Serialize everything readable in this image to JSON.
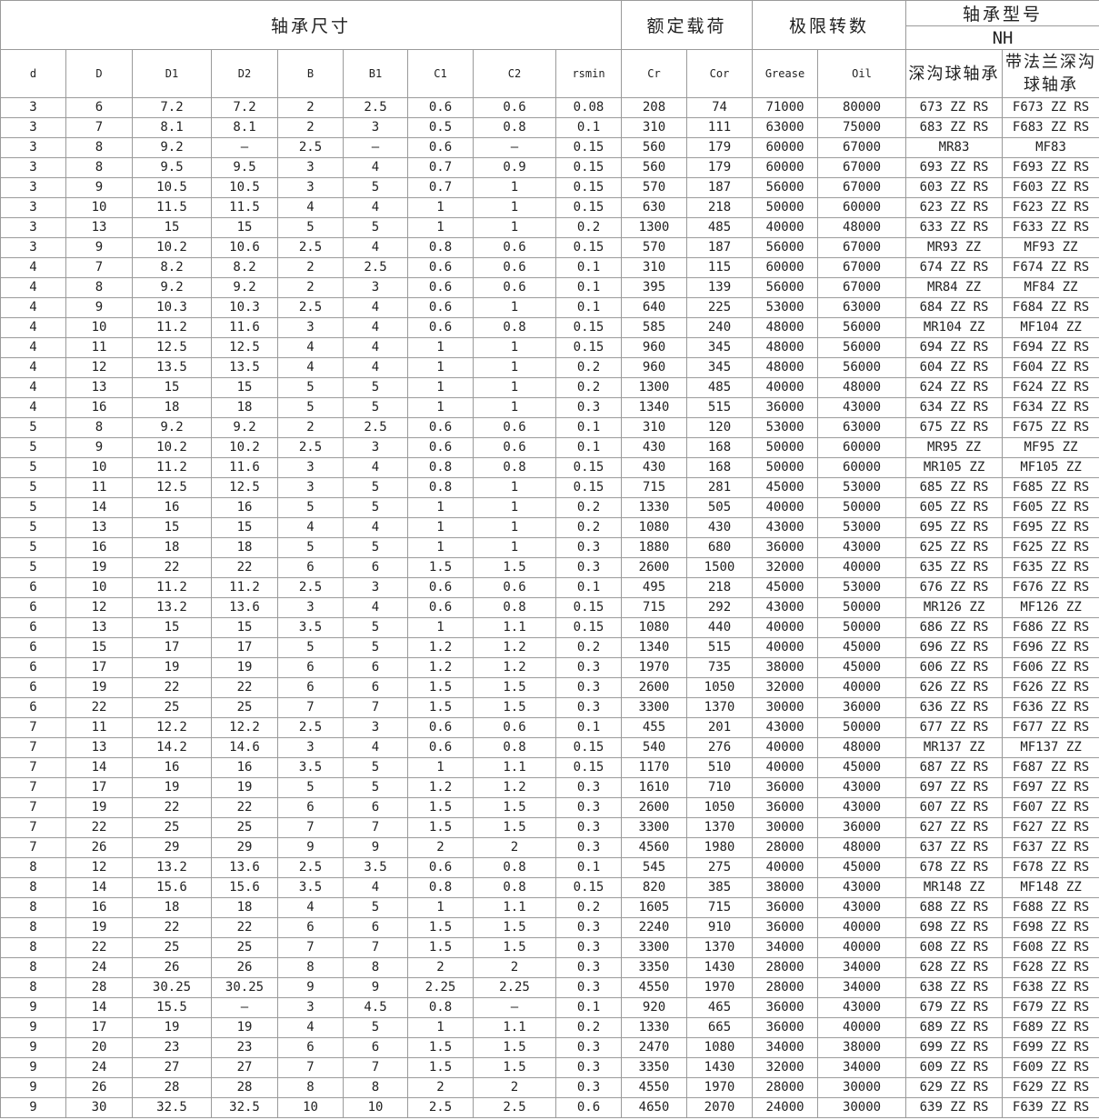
{
  "header": {
    "dimensions": "轴承尺寸",
    "load": "额定载荷",
    "speed": "极限转数",
    "model": "轴承型号",
    "brand": "NH",
    "columns": [
      "d",
      "D",
      "D1",
      "D2",
      "B",
      "B1",
      "C1",
      "C2",
      "rsmin",
      "Cr",
      "Cor",
      "Grease",
      "Oil",
      "深沟球轴承",
      "带法兰深沟球轴承"
    ]
  },
  "table": {
    "rows": [
      [
        "3",
        "6",
        "7.2",
        "7.2",
        "2",
        "2.5",
        "0.6",
        "0.6",
        "0.08",
        "208",
        "74",
        "71000",
        "80000",
        "673 ZZ RS",
        "F673 ZZ RS"
      ],
      [
        "3",
        "7",
        "8.1",
        "8.1",
        "2",
        "3",
        "0.5",
        "0.8",
        "0.1",
        "310",
        "111",
        "63000",
        "75000",
        "683 ZZ RS",
        "F683 ZZ RS"
      ],
      [
        "3",
        "8",
        "9.2",
        "–",
        "2.5",
        "–",
        "0.6",
        "–",
        "0.15",
        "560",
        "179",
        "60000",
        "67000",
        "MR83",
        "MF83"
      ],
      [
        "3",
        "8",
        "9.5",
        "9.5",
        "3",
        "4",
        "0.7",
        "0.9",
        "0.15",
        "560",
        "179",
        "60000",
        "67000",
        "693 ZZ RS",
        "F693 ZZ RS"
      ],
      [
        "3",
        "9",
        "10.5",
        "10.5",
        "3",
        "5",
        "0.7",
        "1",
        "0.15",
        "570",
        "187",
        "56000",
        "67000",
        "603 ZZ RS",
        "F603 ZZ RS"
      ],
      [
        "3",
        "10",
        "11.5",
        "11.5",
        "4",
        "4",
        "1",
        "1",
        "0.15",
        "630",
        "218",
        "50000",
        "60000",
        "623 ZZ RS",
        "F623 ZZ RS"
      ],
      [
        "3",
        "13",
        "15",
        "15",
        "5",
        "5",
        "1",
        "1",
        "0.2",
        "1300",
        "485",
        "40000",
        "48000",
        "633 ZZ RS",
        "F633 ZZ RS"
      ],
      [
        "3",
        "9",
        "10.2",
        "10.6",
        "2.5",
        "4",
        "0.8",
        "0.6",
        "0.15",
        "570",
        "187",
        "56000",
        "67000",
        "MR93 ZZ",
        "MF93 ZZ"
      ],
      [
        "4",
        "7",
        "8.2",
        "8.2",
        "2",
        "2.5",
        "0.6",
        "0.6",
        "0.1",
        "310",
        "115",
        "60000",
        "67000",
        "674 ZZ RS",
        "F674 ZZ RS"
      ],
      [
        "4",
        "8",
        "9.2",
        "9.2",
        "2",
        "3",
        "0.6",
        "0.6",
        "0.1",
        "395",
        "139",
        "56000",
        "67000",
        "MR84 ZZ",
        "MF84 ZZ"
      ],
      [
        "4",
        "9",
        "10.3",
        "10.3",
        "2.5",
        "4",
        "0.6",
        "1",
        "0.1",
        "640",
        "225",
        "53000",
        "63000",
        "684 ZZ RS",
        "F684 ZZ RS"
      ],
      [
        "4",
        "10",
        "11.2",
        "11.6",
        "3",
        "4",
        "0.6",
        "0.8",
        "0.15",
        "585",
        "240",
        "48000",
        "56000",
        "MR104 ZZ",
        "MF104 ZZ"
      ],
      [
        "4",
        "11",
        "12.5",
        "12.5",
        "4",
        "4",
        "1",
        "1",
        "0.15",
        "960",
        "345",
        "48000",
        "56000",
        "694 ZZ RS",
        "F694 ZZ RS"
      ],
      [
        "4",
        "12",
        "13.5",
        "13.5",
        "4",
        "4",
        "1",
        "1",
        "0.2",
        "960",
        "345",
        "48000",
        "56000",
        "604 ZZ RS",
        "F604 ZZ RS"
      ],
      [
        "4",
        "13",
        "15",
        "15",
        "5",
        "5",
        "1",
        "1",
        "0.2",
        "1300",
        "485",
        "40000",
        "48000",
        "624 ZZ RS",
        "F624 ZZ RS"
      ],
      [
        "4",
        "16",
        "18",
        "18",
        "5",
        "5",
        "1",
        "1",
        "0.3",
        "1340",
        "515",
        "36000",
        "43000",
        "634 ZZ RS",
        "F634 ZZ RS"
      ],
      [
        "5",
        "8",
        "9.2",
        "9.2",
        "2",
        "2.5",
        "0.6",
        "0.6",
        "0.1",
        "310",
        "120",
        "53000",
        "63000",
        "675 ZZ RS",
        "F675 ZZ RS"
      ],
      [
        "5",
        "9",
        "10.2",
        "10.2",
        "2.5",
        "3",
        "0.6",
        "0.6",
        "0.1",
        "430",
        "168",
        "50000",
        "60000",
        "MR95 ZZ",
        "MF95 ZZ"
      ],
      [
        "5",
        "10",
        "11.2",
        "11.6",
        "3",
        "4",
        "0.8",
        "0.8",
        "0.15",
        "430",
        "168",
        "50000",
        "60000",
        "MR105 ZZ",
        "MF105 ZZ"
      ],
      [
        "5",
        "11",
        "12.5",
        "12.5",
        "3",
        "5",
        "0.8",
        "1",
        "0.15",
        "715",
        "281",
        "45000",
        "53000",
        "685 ZZ RS",
        "F685 ZZ RS"
      ],
      [
        "5",
        "14",
        "16",
        "16",
        "5",
        "5",
        "1",
        "1",
        "0.2",
        "1330",
        "505",
        "40000",
        "50000",
        "605 ZZ RS",
        "F605 ZZ RS"
      ],
      [
        "5",
        "13",
        "15",
        "15",
        "4",
        "4",
        "1",
        "1",
        "0.2",
        "1080",
        "430",
        "43000",
        "53000",
        "695 ZZ RS",
        "F695 ZZ RS"
      ],
      [
        "5",
        "16",
        "18",
        "18",
        "5",
        "5",
        "1",
        "1",
        "0.3",
        "1880",
        "680",
        "36000",
        "43000",
        "625 ZZ RS",
        "F625 ZZ RS"
      ],
      [
        "5",
        "19",
        "22",
        "22",
        "6",
        "6",
        "1.5",
        "1.5",
        "0.3",
        "2600",
        "1500",
        "32000",
        "40000",
        "635 ZZ RS",
        "F635 ZZ RS"
      ],
      [
        "6",
        "10",
        "11.2",
        "11.2",
        "2.5",
        "3",
        "0.6",
        "0.6",
        "0.1",
        "495",
        "218",
        "45000",
        "53000",
        "676 ZZ RS",
        "F676 ZZ RS"
      ],
      [
        "6",
        "12",
        "13.2",
        "13.6",
        "3",
        "4",
        "0.6",
        "0.8",
        "0.15",
        "715",
        "292",
        "43000",
        "50000",
        "MR126 ZZ",
        "MF126 ZZ"
      ],
      [
        "6",
        "13",
        "15",
        "15",
        "3.5",
        "5",
        "1",
        "1.1",
        "0.15",
        "1080",
        "440",
        "40000",
        "50000",
        "686 ZZ RS",
        "F686 ZZ RS"
      ],
      [
        "6",
        "15",
        "17",
        "17",
        "5",
        "5",
        "1.2",
        "1.2",
        "0.2",
        "1340",
        "515",
        "40000",
        "45000",
        "696 ZZ RS",
        "F696 ZZ RS"
      ],
      [
        "6",
        "17",
        "19",
        "19",
        "6",
        "6",
        "1.2",
        "1.2",
        "0.3",
        "1970",
        "735",
        "38000",
        "45000",
        "606 ZZ RS",
        "F606 ZZ RS"
      ],
      [
        "6",
        "19",
        "22",
        "22",
        "6",
        "6",
        "1.5",
        "1.5",
        "0.3",
        "2600",
        "1050",
        "32000",
        "40000",
        "626 ZZ RS",
        "F626 ZZ RS"
      ],
      [
        "6",
        "22",
        "25",
        "25",
        "7",
        "7",
        "1.5",
        "1.5",
        "0.3",
        "3300",
        "1370",
        "30000",
        "36000",
        "636 ZZ RS",
        "F636 ZZ RS"
      ],
      [
        "7",
        "11",
        "12.2",
        "12.2",
        "2.5",
        "3",
        "0.6",
        "0.6",
        "0.1",
        "455",
        "201",
        "43000",
        "50000",
        "677 ZZ RS",
        "F677 ZZ RS"
      ],
      [
        "7",
        "13",
        "14.2",
        "14.6",
        "3",
        "4",
        "0.6",
        "0.8",
        "0.15",
        "540",
        "276",
        "40000",
        "48000",
        "MR137 ZZ",
        "MF137 ZZ"
      ],
      [
        "7",
        "14",
        "16",
        "16",
        "3.5",
        "5",
        "1",
        "1.1",
        "0.15",
        "1170",
        "510",
        "40000",
        "45000",
        "687 ZZ RS",
        "F687 ZZ RS"
      ],
      [
        "7",
        "17",
        "19",
        "19",
        "5",
        "5",
        "1.2",
        "1.2",
        "0.3",
        "1610",
        "710",
        "36000",
        "43000",
        "697 ZZ RS",
        "F697 ZZ RS"
      ],
      [
        "7",
        "19",
        "22",
        "22",
        "6",
        "6",
        "1.5",
        "1.5",
        "0.3",
        "2600",
        "1050",
        "36000",
        "43000",
        "607 ZZ RS",
        "F607 ZZ RS"
      ],
      [
        "7",
        "22",
        "25",
        "25",
        "7",
        "7",
        "1.5",
        "1.5",
        "0.3",
        "3300",
        "1370",
        "30000",
        "36000",
        "627 ZZ RS",
        "F627 ZZ RS"
      ],
      [
        "7",
        "26",
        "29",
        "29",
        "9",
        "9",
        "2",
        "2",
        "0.3",
        "4560",
        "1980",
        "28000",
        "48000",
        "637 ZZ RS",
        "F637 ZZ RS"
      ],
      [
        "8",
        "12",
        "13.2",
        "13.6",
        "2.5",
        "3.5",
        "0.6",
        "0.8",
        "0.1",
        "545",
        "275",
        "40000",
        "45000",
        "678 ZZ RS",
        "F678 ZZ RS"
      ],
      [
        "8",
        "14",
        "15.6",
        "15.6",
        "3.5",
        "4",
        "0.8",
        "0.8",
        "0.15",
        "820",
        "385",
        "38000",
        "43000",
        "MR148 ZZ",
        "MF148 ZZ"
      ],
      [
        "8",
        "16",
        "18",
        "18",
        "4",
        "5",
        "1",
        "1.1",
        "0.2",
        "1605",
        "715",
        "36000",
        "43000",
        "688 ZZ RS",
        "F688 ZZ RS"
      ],
      [
        "8",
        "19",
        "22",
        "22",
        "6",
        "6",
        "1.5",
        "1.5",
        "0.3",
        "2240",
        "910",
        "36000",
        "40000",
        "698 ZZ RS",
        "F698 ZZ RS"
      ],
      [
        "8",
        "22",
        "25",
        "25",
        "7",
        "7",
        "1.5",
        "1.5",
        "0.3",
        "3300",
        "1370",
        "34000",
        "40000",
        "608 ZZ RS",
        "F608 ZZ RS"
      ],
      [
        "8",
        "24",
        "26",
        "26",
        "8",
        "8",
        "2",
        "2",
        "0.3",
        "3350",
        "1430",
        "28000",
        "34000",
        "628 ZZ RS",
        "F628 ZZ RS"
      ],
      [
        "8",
        "28",
        "30.25",
        "30.25",
        "9",
        "9",
        "2.25",
        "2.25",
        "0.3",
        "4550",
        "1970",
        "28000",
        "34000",
        "638 ZZ RS",
        "F638 ZZ RS"
      ],
      [
        "9",
        "14",
        "15.5",
        "–",
        "3",
        "4.5",
        "0.8",
        "–",
        "0.1",
        "920",
        "465",
        "36000",
        "43000",
        "679 ZZ RS",
        "F679 ZZ RS"
      ],
      [
        "9",
        "17",
        "19",
        "19",
        "4",
        "5",
        "1",
        "1.1",
        "0.2",
        "1330",
        "665",
        "36000",
        "40000",
        "689 ZZ RS",
        "F689 ZZ RS"
      ],
      [
        "9",
        "20",
        "23",
        "23",
        "6",
        "6",
        "1.5",
        "1.5",
        "0.3",
        "2470",
        "1080",
        "34000",
        "38000",
        "699 ZZ RS",
        "F699 ZZ RS"
      ],
      [
        "9",
        "24",
        "27",
        "27",
        "7",
        "7",
        "1.5",
        "1.5",
        "0.3",
        "3350",
        "1430",
        "32000",
        "34000",
        "609 ZZ RS",
        "F609 ZZ RS"
      ],
      [
        "9",
        "26",
        "28",
        "28",
        "8",
        "8",
        "2",
        "2",
        "0.3",
        "4550",
        "1970",
        "28000",
        "30000",
        "629 ZZ RS",
        "F629 ZZ RS"
      ],
      [
        "9",
        "30",
        "32.5",
        "32.5",
        "10",
        "10",
        "2.5",
        "2.5",
        "0.6",
        "4650",
        "2070",
        "24000",
        "30000",
        "639 ZZ RS",
        "F639 ZZ RS"
      ]
    ]
  }
}
